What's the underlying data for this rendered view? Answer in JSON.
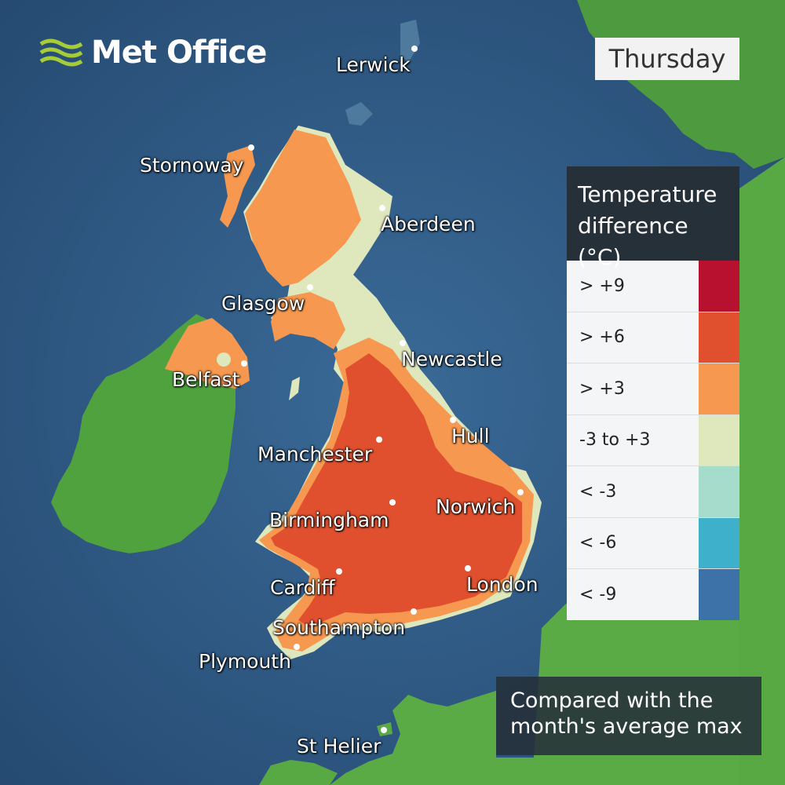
{
  "brand": {
    "name": "Met Office"
  },
  "day": "Thursday",
  "legend": {
    "title_lines": [
      "Temperature",
      "difference",
      "(°C)"
    ],
    "items": [
      {
        "label": "> +9",
        "color": "#b8102f"
      },
      {
        "label": "> +6",
        "color": "#e0502e"
      },
      {
        "label": "> +3",
        "color": "#f6984f"
      },
      {
        "label": "-3 to +3",
        "color": "#dfe7bd"
      },
      {
        "label": "< -3",
        "color": "#a6dccb"
      },
      {
        "label": "< -6",
        "color": "#3fb0cc"
      },
      {
        "label": "< -9",
        "color": "#3d72a8"
      }
    ]
  },
  "note": "Compared with the month's average max",
  "cities": {
    "lerwick": "Lerwick",
    "stornoway": "Stornoway",
    "aberdeen": "Aberdeen",
    "glasgow": "Glasgow",
    "newcastle": "Newcastle",
    "belfast": "Belfast",
    "hull": "Hull",
    "manchester": "Manchester",
    "norwich": "Norwich",
    "birmingham": "Birmingham",
    "cardiff": "Cardiff",
    "london": "London",
    "southampton": "Southampton",
    "plymouth": "Plymouth",
    "st_helier": "St Helier"
  }
}
